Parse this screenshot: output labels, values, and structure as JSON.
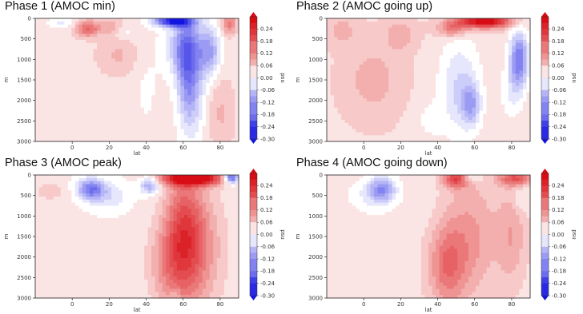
{
  "chart_data": [
    {
      "type": "heatmap",
      "title": "Phase 1 (AMOC min)",
      "xlabel": "lat",
      "ylabel": "m",
      "colorbar_label": "psu",
      "xlim": [
        -20,
        90
      ],
      "ylim": [
        3000,
        0
      ],
      "xticks": [
        "0",
        "20",
        "40",
        "60",
        "80"
      ],
      "yticks": [
        "0",
        "500",
        "1000",
        "1500",
        "2000",
        "2500",
        "3000"
      ],
      "colorbar_ticks": [
        "0.24",
        "0.18",
        "0.12",
        "0.06",
        "0.00",
        "-0.06",
        "-0.12",
        "-0.18",
        "-0.24",
        "-0.30"
      ],
      "vmin": -0.3,
      "vmax": 0.3,
      "background_value": 0.03,
      "anomalies": [
        {
          "lat": 8,
          "depth": 250,
          "rlat": 6,
          "rdepth": 200,
          "value": 0.14
        },
        {
          "lat": 20,
          "depth": 200,
          "rlat": 8,
          "rdepth": 200,
          "value": 0.06
        },
        {
          "lat": -5,
          "depth": 100,
          "rlat": 8,
          "rdepth": 120,
          "value": -0.05
        },
        {
          "lat": 28,
          "depth": 350,
          "rlat": 5,
          "rdepth": 180,
          "value": -0.04
        },
        {
          "lat": 25,
          "depth": 900,
          "rlat": 12,
          "rdepth": 500,
          "value": 0.05
        },
        {
          "lat": 40,
          "depth": 1500,
          "rlat": 8,
          "rdepth": 1500,
          "value": -0.02
        },
        {
          "lat": 55,
          "depth": 60,
          "rlat": 10,
          "rdepth": 140,
          "value": -0.32
        },
        {
          "lat": 63,
          "depth": 1400,
          "rlat": 6,
          "rdepth": 1300,
          "value": -0.17
        },
        {
          "lat": 60,
          "depth": 700,
          "rlat": 9,
          "rdepth": 700,
          "value": -0.12
        },
        {
          "lat": 74,
          "depth": 800,
          "rlat": 6,
          "rdepth": 600,
          "value": -0.14
        },
        {
          "lat": 70,
          "depth": 2000,
          "rlat": 6,
          "rdepth": 1000,
          "value": -0.03
        },
        {
          "lat": 85,
          "depth": 150,
          "rlat": 4,
          "rdepth": 250,
          "value": 0.12
        },
        {
          "lat": 80,
          "depth": 2300,
          "rlat": 8,
          "rdepth": 900,
          "value": 0.05
        }
      ]
    },
    {
      "type": "heatmap",
      "title": "Phase 2 (AMOC going up)",
      "xlabel": "lat",
      "ylabel": "m",
      "colorbar_label": "psu",
      "xlim": [
        -20,
        90
      ],
      "ylim": [
        3000,
        0
      ],
      "xticks": [
        "0",
        "20",
        "40",
        "60",
        "80"
      ],
      "yticks": [
        "0",
        "500",
        "1000",
        "1500",
        "2000",
        "2500",
        "3000"
      ],
      "colorbar_ticks": [
        "0.24",
        "0.18",
        "0.12",
        "0.06",
        "0.00",
        "-0.06",
        "-0.12",
        "-0.18",
        "-0.24",
        "-0.30"
      ],
      "vmin": -0.3,
      "vmax": 0.3,
      "background_value": 0.04,
      "anomalies": [
        {
          "lat": 65,
          "depth": 70,
          "rlat": 14,
          "rdepth": 160,
          "value": 0.3
        },
        {
          "lat": 48,
          "depth": 250,
          "rlat": 8,
          "rdepth": 200,
          "value": 0.12
        },
        {
          "lat": 20,
          "depth": 400,
          "rlat": 8,
          "rdepth": 350,
          "value": 0.06
        },
        {
          "lat": -12,
          "depth": 300,
          "rlat": 8,
          "rdepth": 350,
          "value": 0.05
        },
        {
          "lat": 52,
          "depth": 1700,
          "rlat": 11,
          "rdepth": 1200,
          "value": -0.09
        },
        {
          "lat": 58,
          "depth": 2100,
          "rlat": 5,
          "rdepth": 500,
          "value": -0.11
        },
        {
          "lat": 84,
          "depth": 1000,
          "rlat": 5,
          "rdepth": 700,
          "value": -0.2
        },
        {
          "lat": 80,
          "depth": 1800,
          "rlat": 6,
          "rdepth": 700,
          "value": -0.05
        },
        {
          "lat": 35,
          "depth": 2500,
          "rlat": 8,
          "rdepth": 500,
          "value": -0.03
        },
        {
          "lat": 5,
          "depth": 1500,
          "rlat": 15,
          "rdepth": 900,
          "value": 0.05
        }
      ]
    },
    {
      "type": "heatmap",
      "title": "Phase 3 (AMOC peak)",
      "xlabel": "lat",
      "ylabel": "m",
      "colorbar_label": "psu",
      "xlim": [
        -20,
        90
      ],
      "ylim": [
        3000,
        0
      ],
      "xticks": [
        "0",
        "20",
        "40",
        "60",
        "80"
      ],
      "yticks": [
        "0",
        "500",
        "1000",
        "1500",
        "2000",
        "2500",
        "3000"
      ],
      "colorbar_ticks": [
        "0.24",
        "0.18",
        "0.12",
        "0.06",
        "0.00",
        "-0.06",
        "-0.12",
        "-0.18",
        "-0.24",
        "-0.30"
      ],
      "vmin": -0.3,
      "vmax": 0.3,
      "background_value": 0.02,
      "anomalies": [
        {
          "lat": 65,
          "depth": 80,
          "rlat": 16,
          "rdepth": 170,
          "value": 0.34
        },
        {
          "lat": 86,
          "depth": 60,
          "rlat": 4,
          "rdepth": 140,
          "value": -0.26
        },
        {
          "lat": 10,
          "depth": 350,
          "rlat": 7,
          "rdepth": 250,
          "value": -0.18
        },
        {
          "lat": 20,
          "depth": 500,
          "rlat": 10,
          "rdepth": 350,
          "value": -0.06
        },
        {
          "lat": 42,
          "depth": 250,
          "rlat": 5,
          "rdepth": 200,
          "value": -0.14
        },
        {
          "lat": 60,
          "depth": 1500,
          "rlat": 10,
          "rdepth": 1500,
          "value": 0.16
        },
        {
          "lat": 68,
          "depth": 1800,
          "rlat": 14,
          "rdepth": 1500,
          "value": 0.1
        },
        {
          "lat": 50,
          "depth": 2200,
          "rlat": 10,
          "rdepth": 1000,
          "value": 0.07
        },
        {
          "lat": 56,
          "depth": 2950,
          "rlat": 3,
          "rdepth": 200,
          "value": -0.04
        },
        {
          "lat": -12,
          "depth": 400,
          "rlat": 8,
          "rdepth": 200,
          "value": 0.05
        }
      ]
    },
    {
      "type": "heatmap",
      "title": "Phase 4 (AMOC going down)",
      "xlabel": "lat",
      "ylabel": "m",
      "colorbar_label": "psu",
      "xlim": [
        -20,
        90
      ],
      "ylim": [
        3000,
        0
      ],
      "xticks": [
        "0",
        "20",
        "40",
        "60",
        "80"
      ],
      "yticks": [
        "0",
        "500",
        "1000",
        "1500",
        "2000",
        "2500",
        "3000"
      ],
      "colorbar_ticks": [
        "0.24",
        "0.18",
        "0.12",
        "0.06",
        "0.00",
        "-0.06",
        "-0.12",
        "-0.18",
        "-0.24",
        "-0.30"
      ],
      "vmin": -0.3,
      "vmax": 0.3,
      "background_value": 0.03,
      "anomalies": [
        {
          "lat": 10,
          "depth": 350,
          "rlat": 7,
          "rdepth": 300,
          "value": -0.14
        },
        {
          "lat": 5,
          "depth": 500,
          "rlat": 12,
          "rdepth": 400,
          "value": -0.05
        },
        {
          "lat": 50,
          "depth": 100,
          "rlat": 7,
          "rdepth": 200,
          "value": 0.18
        },
        {
          "lat": 58,
          "depth": 80,
          "rlat": 5,
          "rdepth": 120,
          "value": -0.08
        },
        {
          "lat": 82,
          "depth": 80,
          "rlat": 9,
          "rdepth": 180,
          "value": 0.16
        },
        {
          "lat": 45,
          "depth": 2200,
          "rlat": 10,
          "rdepth": 1000,
          "value": 0.12
        },
        {
          "lat": 58,
          "depth": 1500,
          "rlat": 14,
          "rdepth": 1500,
          "value": 0.08
        },
        {
          "lat": 80,
          "depth": 1500,
          "rlat": 8,
          "rdepth": 1200,
          "value": 0.07
        },
        {
          "lat": 85,
          "depth": 600,
          "rlat": 4,
          "rdepth": 300,
          "value": -0.04
        },
        {
          "lat": 30,
          "depth": 1000,
          "rlat": 10,
          "rdepth": 400,
          "value": -0.01
        }
      ]
    }
  ]
}
